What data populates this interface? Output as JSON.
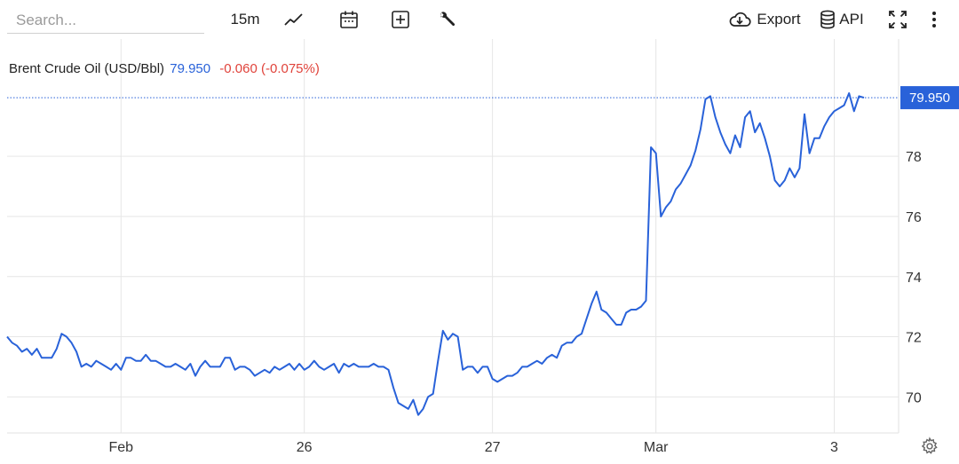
{
  "toolbar": {
    "search_placeholder": "Search...",
    "interval": "15m",
    "export_label": "Export",
    "api_label": "API",
    "icons": [
      "line-chart-icon",
      "calendar-icon",
      "compare-icon",
      "wrench-icon",
      "cloud-download-icon",
      "database-icon",
      "fullscreen-icon",
      "more-vertical-icon",
      "settings-gear-icon"
    ]
  },
  "legend": {
    "name": "Brent Crude Oil (USD/Bbl)",
    "price": "79.950",
    "change": "-0.060 (-0.075%)"
  },
  "colors": {
    "line": "#2962d9",
    "price_tag": "#2962d9",
    "change_negative": "#e0433b",
    "grid": "#e6e6e6"
  },
  "chart_data": {
    "type": "line",
    "title": "Brent Crude Oil (USD/Bbl)",
    "last_value": 79.95,
    "last_label": "79.950",
    "grid": true,
    "ylim": [
      68.8,
      81.9
    ],
    "yticks": [
      70,
      72,
      74,
      76,
      78
    ],
    "ytick_labels": [
      "70",
      "72",
      "74",
      "76",
      "78"
    ],
    "x_tick_labels": [
      "Feb",
      "26",
      "27",
      "Mar",
      "3"
    ],
    "x_tick_index": [
      23,
      60,
      98,
      131,
      167
    ],
    "x_index_range": [
      0,
      180
    ],
    "series": [
      {
        "values": [
          72.0,
          71.8,
          71.7,
          71.5,
          71.6,
          71.4,
          71.6,
          71.3,
          71.3,
          71.3,
          71.6,
          72.1,
          72.0,
          71.8,
          71.5,
          71.0,
          71.1,
          71.0,
          71.2,
          71.1,
          71.0,
          70.9,
          71.1,
          70.9,
          71.3,
          71.3,
          71.2,
          71.2,
          71.4,
          71.2,
          71.2,
          71.1,
          71.0,
          71.0,
          71.1,
          71.0,
          70.9,
          71.1,
          70.7,
          71.0,
          71.2,
          71.0,
          71.0,
          71.0,
          71.3,
          71.3,
          70.9,
          71.0,
          71.0,
          70.9,
          70.7,
          70.8,
          70.9,
          70.8,
          71.0,
          70.9,
          71.0,
          71.1,
          70.9,
          71.1,
          70.9,
          71.0,
          71.2,
          71.0,
          70.9,
          71.0,
          71.1,
          70.8,
          71.1,
          71.0,
          71.1,
          71.0,
          71.0,
          71.0,
          71.1,
          71.0,
          71.0,
          70.9,
          70.3,
          69.8,
          69.7,
          69.6,
          69.9,
          69.4,
          69.6,
          70.0,
          70.1,
          71.2,
          72.2,
          71.9,
          72.1,
          72.0,
          70.9,
          71.0,
          71.0,
          70.8,
          71.0,
          71.0,
          70.6,
          70.5,
          70.6,
          70.7,
          70.7,
          70.8,
          71.0,
          71.0,
          71.1,
          71.2,
          71.1,
          71.3,
          71.4,
          71.3,
          71.7,
          71.8,
          71.8,
          72.0,
          72.1,
          72.6,
          73.1,
          73.5,
          72.9,
          72.8,
          72.6,
          72.4,
          72.4,
          72.8,
          72.9,
          72.9,
          73.0,
          73.2,
          78.3,
          78.1,
          76.0,
          76.3,
          76.5,
          76.9,
          77.1,
          77.4,
          77.7,
          78.2,
          78.9,
          79.9,
          80.0,
          79.3,
          78.8,
          78.4,
          78.1,
          78.7,
          78.3,
          79.3,
          79.5,
          78.8,
          79.1,
          78.6,
          78.0,
          77.2,
          77.0,
          77.2,
          77.6,
          77.3,
          77.6,
          79.4,
          78.1,
          78.6,
          78.6,
          79.0,
          79.3,
          79.5,
          79.6,
          79.7,
          80.1,
          79.5,
          80.0,
          79.95
        ]
      }
    ]
  }
}
